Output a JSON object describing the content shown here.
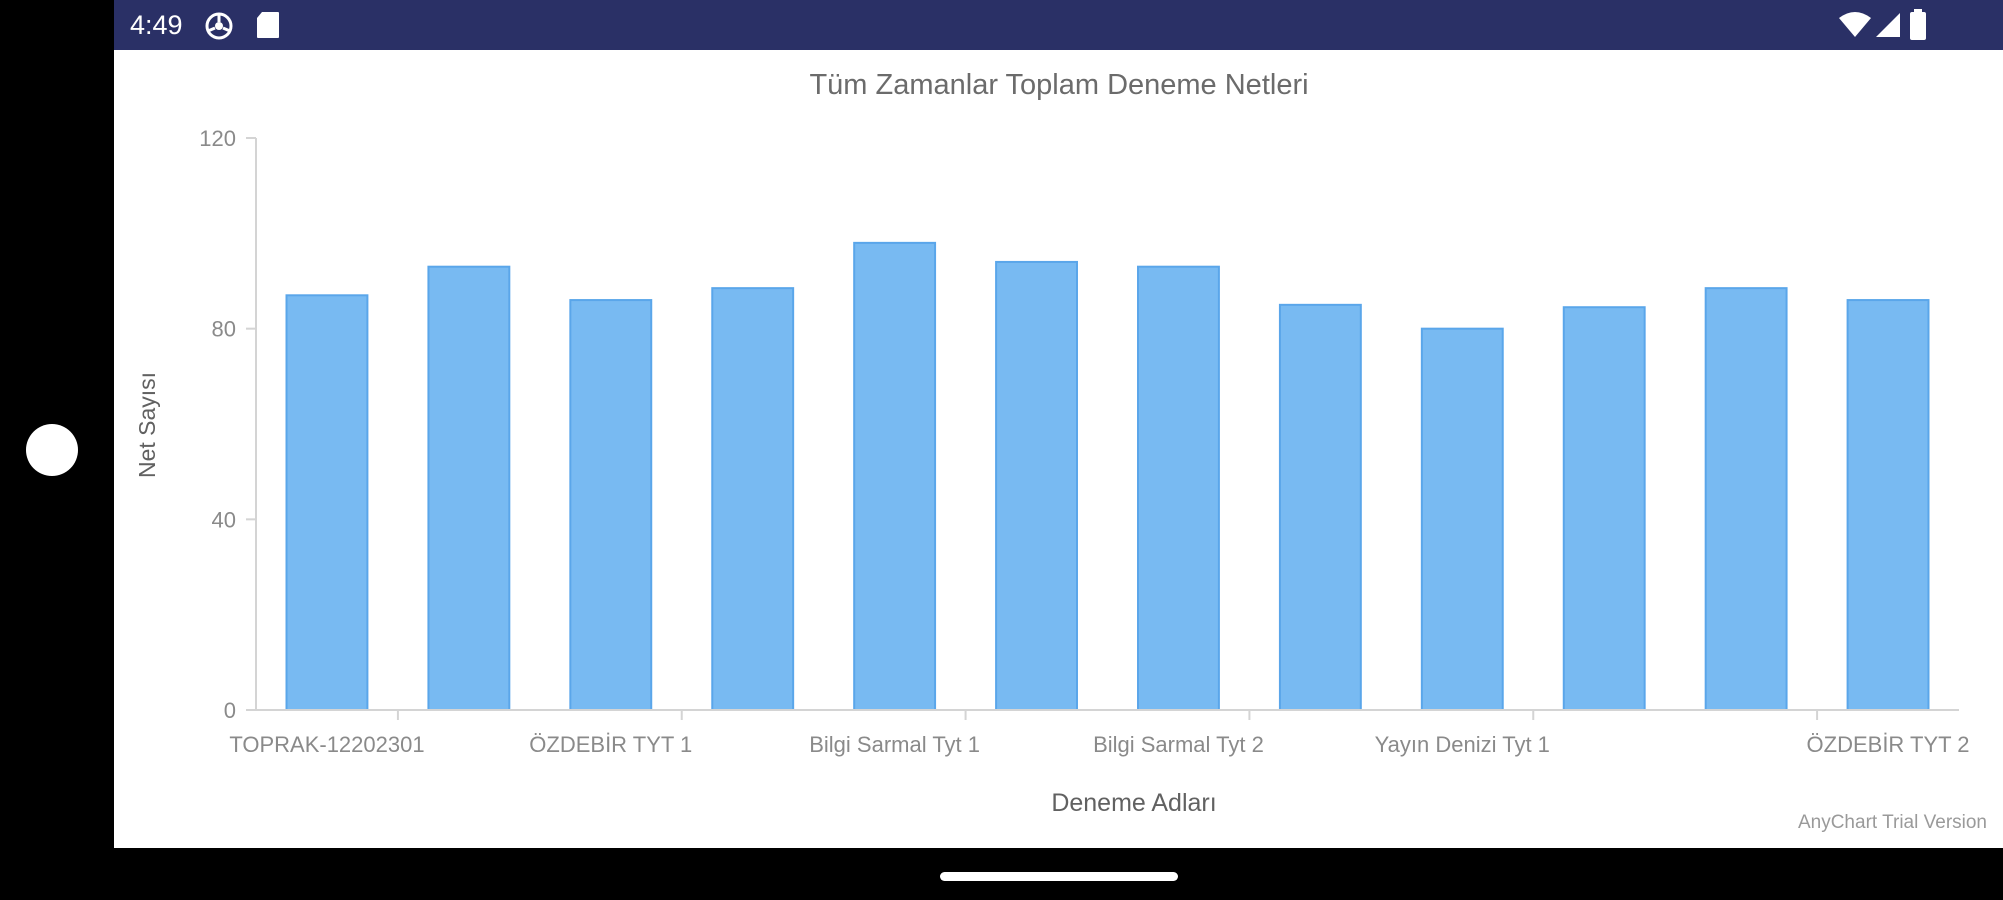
{
  "status_bar": {
    "time": "4:49",
    "left_icons": [
      "browser-icon",
      "sd-card-icon"
    ],
    "right_icons": [
      "wifi-icon",
      "signal-icon",
      "battery-icon"
    ],
    "background": "#2a3066"
  },
  "watermark": "AnyChart Trial Version",
  "chart_data": {
    "type": "bar",
    "title": "Tüm Zamanlar Toplam Deneme Netleri",
    "xlabel": "Deneme Adları",
    "ylabel": "Net Sayısı",
    "ylim": [
      0,
      120
    ],
    "yticks": [
      0,
      40,
      80,
      120
    ],
    "grid": false,
    "legend": "none",
    "bar_color": "#78baf2",
    "bar_edge_color": "#5aa6ea",
    "categories": [
      "TOPRAK-12202301",
      "",
      "ÖZDEBİR TYT 1",
      "",
      "Bilgi Sarmal Tyt 1",
      "",
      "Bilgi Sarmal Tyt 2",
      "",
      "Yayın Denizi Tyt 1",
      "",
      "",
      "ÖZDEBİR TYT 2"
    ],
    "values": [
      87,
      93,
      86,
      88.5,
      98,
      94,
      93,
      85,
      80,
      84.5,
      88.5,
      86
    ]
  }
}
